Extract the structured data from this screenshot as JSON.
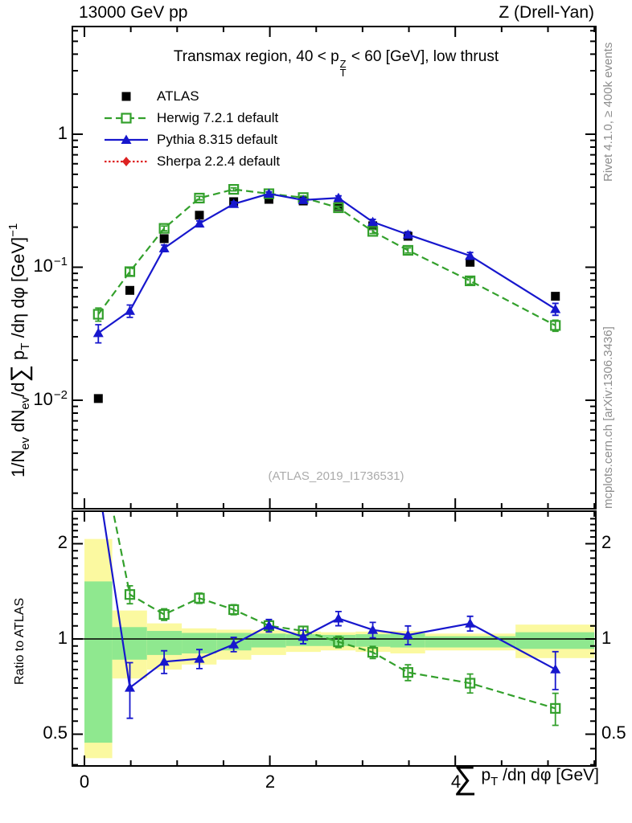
{
  "header": {
    "left": "13000 GeV pp",
    "right": "Z (Drell-Yan)"
  },
  "panel_title": {
    "prefix": "Transmax region, 40 < p",
    "sup": "Z",
    "sub": "T",
    "suffix": " < 60 [GeV], low thrust"
  },
  "legend": {
    "items": [
      {
        "label": "ATLAS"
      },
      {
        "label": "Herwig 7.2.1 default"
      },
      {
        "label": "Pythia 8.315 default"
      },
      {
        "label": "Sherpa 2.2.4 default"
      }
    ]
  },
  "watermark": "(ATLAS_2019_I1736531)",
  "side_notes": {
    "top": "Rivet 4.1.0, ≥ 400k events",
    "bottom": "mcplots.cern.ch [arXiv:1306.3436]"
  },
  "y_title": {
    "p1": "1/N",
    "s1": "ev",
    "p2": " dN",
    "s2": "ev",
    "p3": "/d",
    "sigma": "∑",
    "p4": " p",
    "s4": "T",
    "p5": " /dη dφ  [GeV]",
    "e5": "−1"
  },
  "x_title": {
    "sigma": "∑",
    "p": " p",
    "s": "T",
    "rest": " /dη dφ [GeV]"
  },
  "ratio_title": "Ratio to ATLAS",
  "axes": {
    "y_main": {
      "t1": "1",
      "t2b": "10",
      "t2e": "−1",
      "t3b": "10",
      "t3e": "−2"
    },
    "ratio": {
      "hi": "2",
      "mid": "1",
      "lo": "0.5"
    },
    "x": {
      "l0": "0",
      "l2": "2",
      "l4": "4"
    }
  },
  "chart_data": {
    "type": "line",
    "title": "Transmax region, 40 < pT(Z) < 60 [GeV], low thrust",
    "xlabel": "∑ pT /dη dφ [GeV]",
    "ylabel": "1/Nev dNev/d∑ pT /dη dφ [GeV]^−1",
    "ratio_ylabel": "Ratio to ATLAS",
    "xlim": [
      -0.13,
      5.515
    ],
    "ylim_main": [
      0.00155,
      6.5
    ],
    "ylim_ratio": [
      0.397,
      2.535
    ],
    "x_tick_labeled": [
      0,
      2,
      4
    ],
    "x_tick_minor_step": 0.5,
    "grid": false,
    "legend_position": "top-left",
    "x": [
      0.15,
      0.49,
      0.86,
      1.24,
      1.61,
      1.99,
      2.36,
      2.74,
      3.11,
      3.49,
      4.16,
      5.08
    ],
    "bin_edges": [
      0,
      0.3,
      0.675,
      1.05,
      1.425,
      1.8,
      2.175,
      2.55,
      2.925,
      3.3,
      3.675,
      4.65,
      5.5
    ],
    "series": [
      {
        "name": "ATLAS",
        "color": "#000000",
        "marker": "square-filled",
        "line": "none",
        "ref": true,
        "values": [
          0.0103,
          0.067,
          0.164,
          0.246,
          0.311,
          0.324,
          0.315,
          0.286,
          0.205,
          0.171,
          0.109,
          0.0605
        ],
        "errors": [
          0.0005,
          0.0015,
          0.003,
          0.004,
          0.005,
          0.005,
          0.005,
          0.005,
          0.004,
          0.004,
          0.003,
          0.002
        ],
        "ratio_errors": []
      },
      {
        "name": "Herwig 7.2.1 default",
        "color": "#33a02c",
        "marker": "square-open",
        "line": "dashed",
        "ref": false,
        "values": [
          0.0443,
          0.0926,
          0.196,
          0.331,
          0.385,
          0.357,
          0.334,
          0.28,
          0.186,
          0.134,
          0.079,
          0.0365
        ],
        "errors": [
          0.005,
          0.006,
          0.008,
          0.01,
          0.01,
          0.01,
          0.009,
          0.008,
          0.007,
          0.006,
          0.0045,
          0.0035
        ],
        "ratio_errors": [
          0.5,
          0.09,
          0.05,
          0.05,
          0.045,
          0.04,
          0.035,
          0.04,
          0.04,
          0.045,
          0.05,
          0.07
        ]
      },
      {
        "name": "Pythia 8.315 default",
        "color": "#1717cd",
        "marker": "triangle-filled",
        "line": "solid",
        "ref": false,
        "values": [
          0.032,
          0.047,
          0.139,
          0.213,
          0.299,
          0.357,
          0.32,
          0.332,
          0.219,
          0.176,
          0.122,
          0.0485
        ],
        "errors": [
          0.005,
          0.005,
          0.008,
          0.01,
          0.011,
          0.012,
          0.011,
          0.012,
          0.01,
          0.009,
          0.007,
          0.005
        ],
        "ratio_errors": [
          0.5,
          0.14,
          0.07,
          0.06,
          0.05,
          0.05,
          0.05,
          0.06,
          0.06,
          0.07,
          0.06,
          0.11
        ]
      },
      {
        "name": "Sherpa 2.2.4 default",
        "color": "#dd2222",
        "marker": "diamond-filled",
        "line": "dotted",
        "ref": false,
        "values": [],
        "errors": [],
        "ratio_errors": []
      }
    ],
    "ratio_bands": {
      "yellow": "#fbf9a0",
      "green": "#8fe88f",
      "bins": [
        [
          0.42,
          0.47,
          1.52,
          2.07
        ],
        [
          0.75,
          0.86,
          1.09,
          1.23
        ],
        [
          0.8,
          0.89,
          1.06,
          1.12
        ],
        [
          0.83,
          0.9,
          1.045,
          1.08
        ],
        [
          0.86,
          0.92,
          1.045,
          1.07
        ],
        [
          0.89,
          0.94,
          1.04,
          1.065
        ],
        [
          0.91,
          0.95,
          1.035,
          1.055
        ],
        [
          0.92,
          0.95,
          1.03,
          1.05
        ],
        [
          0.91,
          0.945,
          1.035,
          1.055
        ],
        [
          0.9,
          0.94,
          1.04,
          1.06
        ],
        [
          0.92,
          0.94,
          1.02,
          1.04
        ],
        [
          0.87,
          0.93,
          1.05,
          1.11
        ]
      ]
    }
  }
}
